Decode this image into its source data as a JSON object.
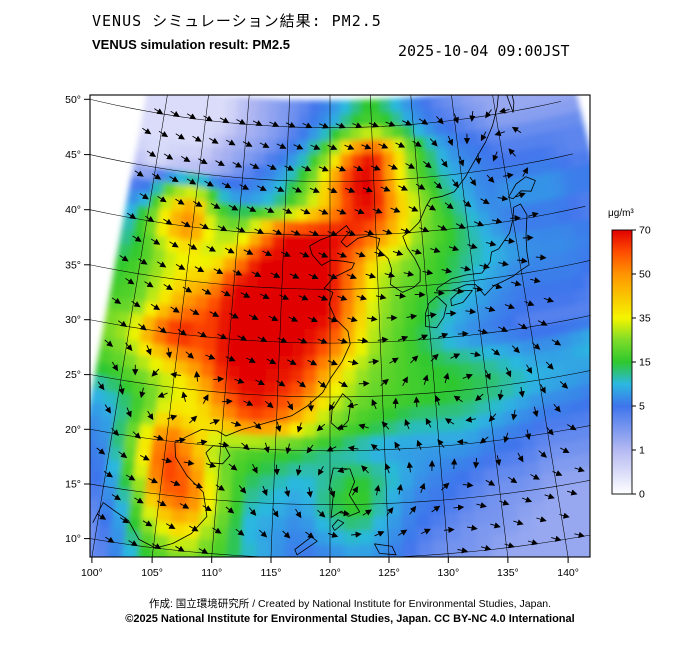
{
  "header": {
    "title_ja": "VENUS シミュレーション結果: PM2.5",
    "title_en": "VENUS simulation result: PM2.5",
    "timestamp": "2025-10-04 09:00JST"
  },
  "footer": {
    "credit_line": "作成:  国立環境研究所 / Created by National Institute for Environmental Studies, Japan.",
    "license_line": "©2025 National Institute for Environmental Studies, Japan. CC BY-NC 4.0 International"
  },
  "colorbar": {
    "unit": "μg/m³",
    "tick_labels": [
      0,
      1,
      5,
      15,
      35,
      50,
      70
    ]
  },
  "axes": {
    "lon_ticks": [
      100,
      105,
      110,
      115,
      120,
      125,
      130,
      135,
      140
    ],
    "lat_ticks": [
      10,
      15,
      20,
      25,
      30,
      35,
      40,
      45,
      50
    ],
    "degree_symbol": "°"
  },
  "chart_data": {
    "type": "heatmap",
    "title": "VENUS simulation result: PM2.5",
    "variable": "PM2.5 surface concentration",
    "units": "μg/m³",
    "valid_time": "2025-10-04 09:00JST",
    "projection": "conic (Lambert-like), central meridian 120E",
    "axis_lon_range": [
      100,
      140
    ],
    "axis_lat_range": [
      10,
      50
    ],
    "colorscale": {
      "tick_values": [
        0,
        1,
        5,
        15,
        35,
        50,
        70
      ],
      "stop_values": [
        0,
        1,
        5,
        10,
        15,
        25,
        35,
        50,
        60,
        70
      ],
      "stop_colors": [
        "#ffffff",
        "#b4b9f2",
        "#3e74ec",
        "#2cb8e0",
        "#2ec82e",
        "#7edc28",
        "#f5f500",
        "#ff9400",
        "#ff4d00",
        "#e10000"
      ]
    },
    "pm25_grid": {
      "comment": "values in ug/m3 on lon/lat grid, rows north-to-south",
      "lon_start": 97.5,
      "lon_step": 2.5,
      "lat_start": 52.5,
      "lat_step": -2.5,
      "values": [
        [
          0.5,
          0.5,
          0.5,
          0.5,
          0.5,
          1,
          2,
          3,
          4,
          6,
          10,
          15,
          10,
          6,
          4,
          3,
          2,
          2,
          2,
          2,
          2,
          2
        ],
        [
          0.5,
          0.5,
          0.5,
          0.5,
          0.5,
          1,
          2,
          3,
          5,
          8,
          15,
          20,
          15,
          8,
          5,
          4,
          3,
          2,
          2,
          2,
          2,
          2
        ],
        [
          0.5,
          0.5,
          0.5,
          0.5,
          1,
          2,
          3,
          5,
          10,
          25,
          55,
          70,
          45,
          20,
          10,
          6,
          5,
          4,
          4,
          4,
          4,
          4
        ],
        [
          1,
          0.5,
          1,
          1,
          2,
          4,
          6,
          10,
          20,
          45,
          70,
          70,
          40,
          20,
          12,
          8,
          6,
          5,
          5,
          5,
          4,
          4
        ],
        [
          5,
          8,
          35,
          45,
          15,
          8,
          10,
          15,
          30,
          45,
          65,
          70,
          45,
          30,
          15,
          10,
          6,
          8,
          8,
          8,
          6,
          6
        ],
        [
          8,
          20,
          45,
          55,
          30,
          25,
          45,
          70,
          70,
          70,
          65,
          55,
          40,
          25,
          18,
          12,
          8,
          5,
          5,
          5,
          4,
          4
        ],
        [
          12,
          15,
          30,
          35,
          30,
          45,
          70,
          70,
          70,
          70,
          55,
          35,
          28,
          20,
          15,
          12,
          10,
          8,
          7,
          7,
          6,
          6
        ],
        [
          15,
          20,
          30,
          40,
          45,
          70,
          70,
          70,
          70,
          70,
          50,
          30,
          22,
          18,
          14,
          10,
          8,
          6,
          6,
          6,
          5,
          5
        ],
        [
          18,
          20,
          35,
          50,
          60,
          70,
          70,
          70,
          70,
          70,
          45,
          28,
          20,
          14,
          10,
          8,
          6,
          5,
          5,
          5,
          4,
          4
        ],
        [
          25,
          30,
          55,
          70,
          60,
          70,
          70,
          70,
          70,
          60,
          40,
          25,
          18,
          12,
          8,
          6,
          5,
          4,
          4,
          4,
          4,
          4
        ],
        [
          20,
          25,
          35,
          45,
          55,
          70,
          70,
          70,
          65,
          45,
          30,
          22,
          18,
          15,
          14,
          12,
          10,
          8,
          8,
          10,
          12,
          10
        ],
        [
          12,
          15,
          22,
          30,
          40,
          60,
          70,
          65,
          55,
          35,
          25,
          20,
          18,
          16,
          15,
          14,
          12,
          10,
          9,
          8,
          8,
          8
        ],
        [
          8,
          10,
          18,
          40,
          35,
          45,
          60,
          55,
          40,
          25,
          18,
          15,
          12,
          12,
          12,
          10,
          8,
          6,
          6,
          5,
          5,
          5
        ],
        [
          6,
          8,
          30,
          60,
          45,
          25,
          20,
          18,
          15,
          12,
          10,
          8,
          8,
          8,
          8,
          6,
          5,
          4,
          4,
          4,
          4,
          4
        ],
        [
          5,
          6,
          25,
          65,
          55,
          25,
          15,
          12,
          10,
          12,
          15,
          12,
          8,
          6,
          5,
          4,
          4,
          3,
          3,
          3,
          3,
          3
        ],
        [
          4,
          5,
          15,
          55,
          60,
          30,
          12,
          10,
          8,
          14,
          18,
          10,
          6,
          5,
          4,
          3,
          3,
          2,
          2,
          2,
          2,
          2
        ],
        [
          3,
          4,
          10,
          35,
          45,
          25,
          10,
          8,
          6,
          10,
          12,
          8,
          5,
          4,
          3,
          3,
          2,
          2,
          2,
          2,
          2,
          2
        ],
        [
          3,
          3,
          8,
          20,
          30,
          20,
          12,
          8,
          5,
          6,
          8,
          6,
          4,
          3,
          3,
          2,
          2,
          2,
          2,
          2,
          2,
          2
        ],
        [
          3,
          3,
          6,
          12,
          20,
          15,
          10,
          6,
          4,
          5,
          6,
          5,
          4,
          3,
          2,
          2,
          2,
          2,
          2,
          2,
          2,
          2
        ]
      ]
    },
    "wind": {
      "comment": "surface wind vectors shown as arrows; parametric approximation",
      "base": {
        "u": 0.8,
        "v": -0.35
      },
      "vortices": [
        {
          "lon": 121.5,
          "lat": 16.5,
          "rotation": "cyclonic",
          "strength": 45,
          "radius": 2.5
        },
        {
          "lon": 104.5,
          "lat": 23.0,
          "rotation": "cyclonic",
          "strength": 12,
          "radius": 2.0
        },
        {
          "lon": 133.5,
          "lat": 26.0,
          "rotation": "anticyclonic",
          "strength": 22,
          "radius": 3.0
        },
        {
          "lon": 140.0,
          "lat": 45.0,
          "rotation": "cyclonic",
          "strength": 16,
          "radius": 3.0
        }
      ]
    }
  }
}
